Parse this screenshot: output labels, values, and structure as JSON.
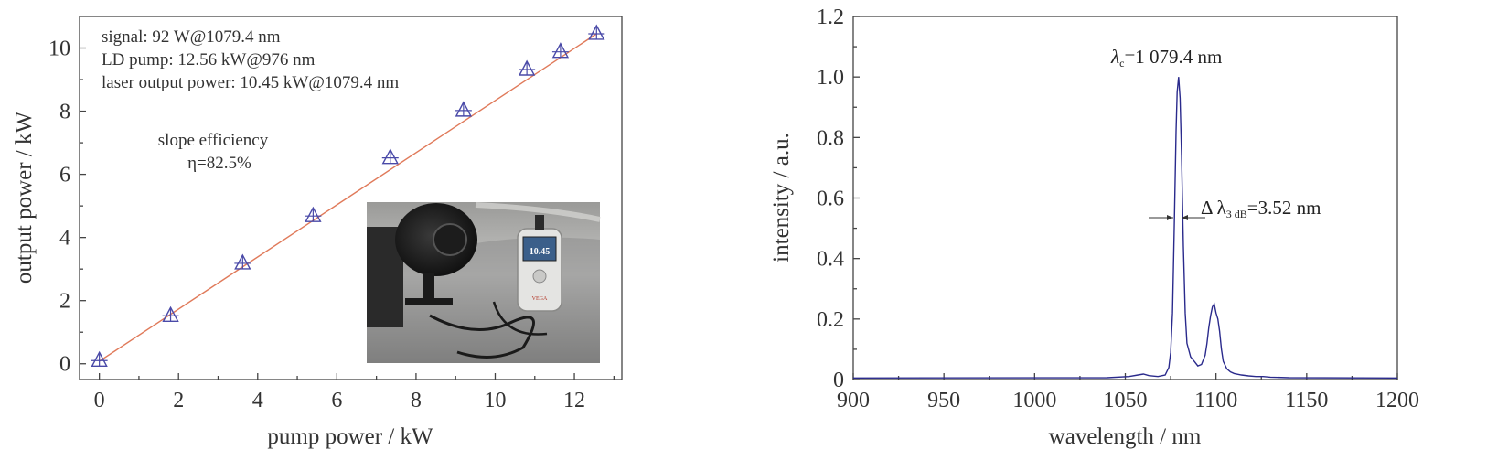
{
  "chart_data": [
    {
      "type": "scatter",
      "xlabel": "pump power / kW",
      "ylabel": "output power / kW",
      "xlim": [
        -0.5,
        13.2
      ],
      "ylim": [
        -0.5,
        11.0
      ],
      "xticks": [
        0,
        2,
        4,
        6,
        8,
        10,
        12
      ],
      "yticks": [
        0,
        2,
        4,
        6,
        8,
        10
      ],
      "grid": false,
      "series": [
        {
          "x": [
            0.0,
            1.8,
            3.62,
            5.4,
            7.35,
            9.2,
            10.8,
            11.65,
            12.56
          ],
          "y": [
            0.1,
            1.52,
            3.18,
            4.68,
            6.52,
            8.02,
            9.32,
            9.88,
            10.45
          ],
          "marker": "triangle",
          "color": "#4a4aa8"
        }
      ],
      "fit_line": {
        "x": [
          0.0,
          12.56
        ],
        "y": [
          0.08,
          10.45
        ],
        "color": "#e07a5a"
      },
      "annotations": {
        "signal": "signal: 92 W@1079.4 nm",
        "pump": "LD pump: 12.56 kW@976 nm",
        "output": "laser output power: 10.45 kW@1079.4 nm",
        "slope_title": "slope efficiency",
        "slope_value": "η=82.5%",
        "meter_reading": "10.45",
        "meter_brand": "VEGA"
      }
    },
    {
      "type": "line",
      "xlabel": "wavelength / nm",
      "ylabel": "intensity / a.u.",
      "xlim": [
        900,
        1200
      ],
      "ylim": [
        0,
        1.2
      ],
      "xticks": [
        900,
        950,
        1000,
        1050,
        1100,
        1150,
        1200
      ],
      "yticks": [
        0,
        0.2,
        0.4,
        0.6,
        0.8,
        1.0,
        1.2
      ],
      "ytick_labels": [
        "0",
        "0.2",
        "0.4",
        "0.6",
        "0.8",
        "1.0",
        "1.2"
      ],
      "grid": false,
      "series": [
        {
          "color": "#2a2a8c",
          "x": [
            900,
            1040,
            1052,
            1057,
            1060,
            1063,
            1068,
            1072,
            1074,
            1075,
            1076,
            1077,
            1078,
            1078.6,
            1079.4,
            1080.2,
            1081,
            1082,
            1083,
            1084,
            1086,
            1088,
            1090,
            1092,
            1094,
            1095,
            1096,
            1097,
            1098,
            1099,
            1100,
            1101,
            1102,
            1103,
            1104,
            1106,
            1108,
            1110,
            1114,
            1118,
            1122,
            1126,
            1130,
            1140,
            1200
          ],
          "y": [
            0.005,
            0.006,
            0.01,
            0.015,
            0.018,
            0.013,
            0.01,
            0.015,
            0.04,
            0.09,
            0.22,
            0.5,
            0.82,
            0.95,
            1.0,
            0.93,
            0.74,
            0.44,
            0.22,
            0.12,
            0.075,
            0.06,
            0.045,
            0.05,
            0.08,
            0.12,
            0.17,
            0.21,
            0.24,
            0.25,
            0.22,
            0.2,
            0.16,
            0.1,
            0.06,
            0.035,
            0.025,
            0.02,
            0.015,
            0.012,
            0.01,
            0.01,
            0.008,
            0.006,
            0.005
          ]
        }
      ],
      "annotations": {
        "peak_symbol": "λ",
        "peak_sub": "c",
        "peak_value": "=1 079.4 nm",
        "bw_prefix": "Δ λ",
        "bw_sub": "3 dB",
        "bw_value": "=3.52 nm"
      }
    }
  ]
}
